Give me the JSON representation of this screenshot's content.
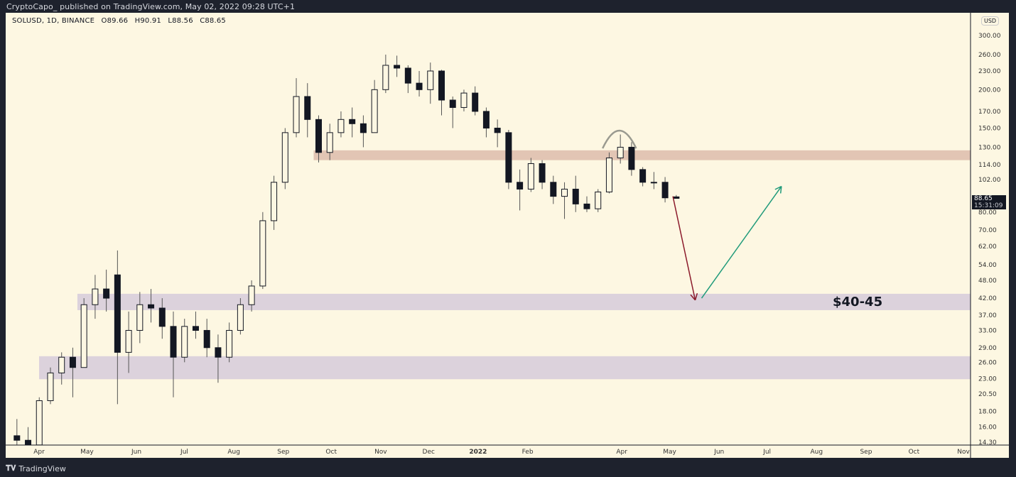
{
  "header": {
    "published": "CryptoCapo_  published on TradingView.com, May 02, 2022 09:28 UTC+1"
  },
  "legend": {
    "symbol": "SOLUSD, 1D, BINANCE",
    "open": "O89.66",
    "high": "H90.91",
    "low": "L88.56",
    "close": "C88.65"
  },
  "price_axis": {
    "currency": "USD",
    "last_price": "88.65",
    "countdown": "15:31:09"
  },
  "annotation": {
    "target_label": "$40-45"
  },
  "footer": {
    "brand": "TradingView"
  },
  "colors": {
    "background": "#fdf7e2",
    "frame": "#1e222d",
    "resistance_zone": "#e2c5b4",
    "support_zone": "#dcd2dc",
    "down_arrow": "#8b1a2b",
    "up_arrow": "#1f9a7a",
    "arc": "#9a9a90",
    "candle": "#131722"
  },
  "chart_data": {
    "type": "candlestick",
    "symbol": "SOLUSD",
    "interval": "1D",
    "y_scale": "log",
    "ylim": [
      14.3,
      300
    ],
    "grid": false,
    "y_ticks": [
      "300.00",
      "260.00",
      "230.00",
      "200.00",
      "170.00",
      "150.00",
      "130.00",
      "114.00",
      "102.00",
      "80.00",
      "70.00",
      "62.00",
      "54.00",
      "48.00",
      "42.00",
      "37.00",
      "33.00",
      "29.00",
      "26.00",
      "23.00",
      "20.50",
      "18.00",
      "16.00",
      "14.30"
    ],
    "x_ticks": [
      {
        "label": "Apr",
        "date": "2021-04-01"
      },
      {
        "label": "May",
        "date": "2021-05-01"
      },
      {
        "label": "Jun",
        "date": "2021-06-01"
      },
      {
        "label": "Jul",
        "date": "2021-07-01"
      },
      {
        "label": "Aug",
        "date": "2021-08-01"
      },
      {
        "label": "Sep",
        "date": "2021-09-01"
      },
      {
        "label": "Oct",
        "date": "2021-10-01"
      },
      {
        "label": "Nov",
        "date": "2021-11-01"
      },
      {
        "label": "Dec",
        "date": "2021-12-01"
      },
      {
        "label": "2022",
        "date": "2022-01-01"
      },
      {
        "label": "Feb",
        "date": "2022-02-01"
      },
      {
        "label": "Apr",
        "date": "2022-04-01"
      },
      {
        "label": "May",
        "date": "2022-05-01"
      },
      {
        "label": "Jun",
        "date": "2022-06-01"
      },
      {
        "label": "Jul",
        "date": "2022-07-01"
      },
      {
        "label": "Aug",
        "date": "2022-08-01"
      },
      {
        "label": "Sep",
        "date": "2022-09-01"
      },
      {
        "label": "Oct",
        "date": "2022-10-01"
      },
      {
        "label": "Nov",
        "date": "2022-11-01"
      }
    ],
    "candles": [
      [
        "2021-03-15",
        15,
        17,
        13.5,
        14.5
      ],
      [
        "2021-03-22",
        14.5,
        16,
        13,
        14
      ],
      [
        "2021-03-29",
        14,
        20,
        14,
        19.5
      ],
      [
        "2021-04-05",
        19.5,
        25,
        19,
        24
      ],
      [
        "2021-04-12",
        24,
        28,
        22,
        27
      ],
      [
        "2021-04-19",
        27,
        29,
        20,
        25
      ],
      [
        "2021-04-26",
        25,
        42,
        25,
        40
      ],
      [
        "2021-05-03",
        40,
        50,
        36,
        45
      ],
      [
        "2021-05-10",
        45,
        52,
        38,
        42
      ],
      [
        "2021-05-17",
        50,
        60,
        19,
        28
      ],
      [
        "2021-05-24",
        28,
        38,
        24,
        33
      ],
      [
        "2021-05-31",
        33,
        44,
        30,
        40
      ],
      [
        "2021-06-07",
        40,
        45,
        35,
        39
      ],
      [
        "2021-06-14",
        39,
        42,
        31,
        34
      ],
      [
        "2021-06-21",
        34,
        38,
        20,
        27
      ],
      [
        "2021-06-28",
        27,
        36,
        26,
        34
      ],
      [
        "2021-07-05",
        34,
        38,
        31,
        33
      ],
      [
        "2021-07-12",
        33,
        36,
        27,
        29
      ],
      [
        "2021-07-19",
        29,
        32,
        22.3,
        27
      ],
      [
        "2021-07-26",
        27,
        35,
        26,
        33
      ],
      [
        "2021-08-02",
        33,
        42,
        32,
        40
      ],
      [
        "2021-08-09",
        40,
        48,
        38,
        46
      ],
      [
        "2021-08-16",
        46,
        80,
        45,
        75
      ],
      [
        "2021-08-23",
        75,
        105,
        70,
        100
      ],
      [
        "2021-08-30",
        100,
        150,
        95,
        145
      ],
      [
        "2021-09-06",
        145,
        218,
        140,
        190
      ],
      [
        "2021-09-13",
        190,
        210,
        140,
        160
      ],
      [
        "2021-09-20",
        160,
        165,
        116,
        125
      ],
      [
        "2021-09-27",
        125,
        155,
        118,
        145
      ],
      [
        "2021-10-04",
        145,
        170,
        140,
        160
      ],
      [
        "2021-10-11",
        160,
        175,
        140,
        155
      ],
      [
        "2021-10-18",
        155,
        165,
        130,
        145
      ],
      [
        "2021-10-25",
        145,
        215,
        145,
        200
      ],
      [
        "2021-11-01",
        200,
        260,
        195,
        240
      ],
      [
        "2021-11-08",
        240,
        258,
        220,
        235
      ],
      [
        "2021-11-15",
        235,
        240,
        195,
        210
      ],
      [
        "2021-11-22",
        210,
        230,
        190,
        200
      ],
      [
        "2021-11-29",
        200,
        245,
        180,
        230
      ],
      [
        "2021-12-06",
        230,
        232,
        165,
        185
      ],
      [
        "2021-12-13",
        185,
        190,
        150,
        175
      ],
      [
        "2021-12-20",
        175,
        200,
        170,
        195
      ],
      [
        "2021-12-27",
        195,
        205,
        165,
        170
      ],
      [
        "2022-01-03",
        170,
        175,
        140,
        150
      ],
      [
        "2022-01-10",
        150,
        160,
        130,
        145
      ],
      [
        "2022-01-17",
        145,
        148,
        95,
        100
      ],
      [
        "2022-01-24",
        100,
        110,
        81,
        95
      ],
      [
        "2022-01-31",
        95,
        120,
        93,
        115
      ],
      [
        "2022-02-07",
        115,
        118,
        95,
        100
      ],
      [
        "2022-02-14",
        100,
        105,
        85,
        90
      ],
      [
        "2022-02-21",
        90,
        100,
        76,
        95
      ],
      [
        "2022-02-28",
        95,
        105,
        80,
        85
      ],
      [
        "2022-03-07",
        85,
        90,
        80,
        82
      ],
      [
        "2022-03-14",
        82,
        95,
        80,
        93
      ],
      [
        "2022-03-21",
        93,
        125,
        92,
        120
      ],
      [
        "2022-03-28",
        120,
        143,
        115,
        130
      ],
      [
        "2022-04-04",
        130,
        135,
        105,
        110
      ],
      [
        "2022-04-11",
        110,
        112,
        97,
        100
      ],
      [
        "2022-04-18",
        100,
        108,
        95,
        100
      ],
      [
        "2022-04-25",
        100,
        104,
        86,
        89
      ],
      [
        "2022-05-02",
        89.66,
        90.91,
        88.56,
        88.65
      ]
    ],
    "zones": [
      {
        "kind": "resistance",
        "from_date": "2021-09-20",
        "low": 118,
        "high": 127
      },
      {
        "kind": "support",
        "from_date": "2021-04-25",
        "low": 38.4,
        "high": 43.4
      },
      {
        "kind": "support",
        "from_date": "2021-04-01",
        "low": 22.9,
        "high": 27.2
      }
    ],
    "arrows": [
      {
        "direction": "down",
        "from": {
          "date": "2022-05-03",
          "price": 90
        },
        "to": {
          "date": "2022-05-17",
          "price": 41.4
        }
      },
      {
        "direction": "up",
        "from": {
          "date": "2022-05-21",
          "price": 42
        },
        "to": {
          "date": "2022-07-10",
          "price": 97
        }
      }
    ],
    "arc": {
      "from_date": "2022-03-20",
      "to_date": "2022-04-10",
      "peak_price": 148
    }
  }
}
